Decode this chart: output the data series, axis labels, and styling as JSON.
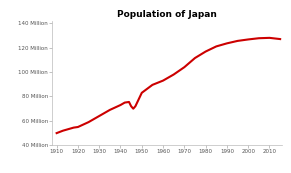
{
  "title": "Population of Japan",
  "title_fontsize": 6.5,
  "line_color": "#cc0000",
  "line_width": 1.5,
  "background_color": "#ffffff",
  "xlim": [
    1908,
    2016
  ],
  "ylim": [
    40000000,
    142000000
  ],
  "xticks": [
    1910,
    1920,
    1930,
    1940,
    1950,
    1960,
    1970,
    1980,
    1990,
    2000,
    2010
  ],
  "yticks": [
    40000000,
    60000000,
    80000000,
    100000000,
    120000000,
    140000000
  ],
  "ytick_labels": [
    "40 Million",
    "60 Million",
    "80 Million",
    "100 Million",
    "120 Million",
    "140 Million"
  ],
  "tick_fontsize": 4.0,
  "years": [
    1910,
    1913,
    1915,
    1918,
    1920,
    1925,
    1930,
    1935,
    1940,
    1942,
    1944,
    1945,
    1946,
    1947,
    1950,
    1955,
    1960,
    1965,
    1970,
    1975,
    1980,
    1985,
    1990,
    1995,
    2000,
    2005,
    2010,
    2015
  ],
  "population": [
    50000000,
    52000000,
    53000000,
    54500000,
    55000000,
    59000000,
    64000000,
    69000000,
    73000000,
    75000000,
    75500000,
    72000000,
    70000000,
    72000000,
    83000000,
    89500000,
    93000000,
    98000000,
    104000000,
    111500000,
    116800000,
    121000000,
    123500000,
    125500000,
    126700000,
    127700000,
    128000000,
    127000000
  ]
}
